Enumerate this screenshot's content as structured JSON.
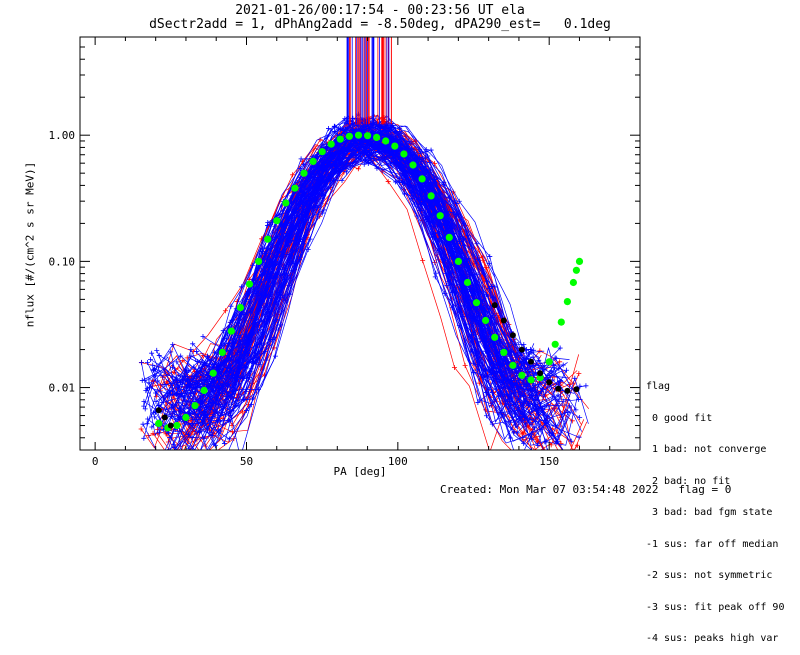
{
  "title_line1": "2021-01-26/00:17:54 - 00:23:56 UT ela",
  "title_line2": "dSectr2add = 1, dPhAng2add = -8.50deg, dPA290_est=   0.1deg",
  "footer": {
    "created": "Created: Mon Mar 07 03:54:48 2022",
    "flag": "flag = 0"
  },
  "legend": {
    "title": "flag",
    "items": [
      " 0 good fit",
      " 1 bad: not converge",
      " 2 bad: no fit",
      " 3 bad: bad fgm state",
      "-1 sus: far off median",
      "-2 sus: not symmetric",
      "-3 sus: fit peak off 90",
      "-4 sus: peaks high var"
    ]
  },
  "colors": {
    "red": "#ff0000",
    "blue": "#0000ff",
    "green": "#00ff00",
    "black": "#000000"
  },
  "chart_data": {
    "type": "line",
    "xlabel": "PA [deg]",
    "ylabel": "nflux [#/(cm^2 s sr MeV)]",
    "xlim": [
      -5,
      180
    ],
    "ylim": [
      0.0032,
      6.0
    ],
    "yscale": "log",
    "x_ticks": [
      0,
      50,
      100,
      150
    ],
    "x_tick_labels": [
      "0",
      "50",
      "100",
      "150"
    ],
    "y_ticks": [
      0.01,
      0.1,
      1.0
    ],
    "y_tick_labels": [
      "0.01",
      "0.10",
      "1.00"
    ],
    "series": [
      {
        "color": "green",
        "style": "markers",
        "x": [
          21,
          24,
          27,
          30,
          33,
          36,
          39,
          42,
          45,
          48,
          51,
          54,
          57,
          60,
          63,
          66,
          69,
          72,
          75,
          78,
          81,
          84,
          87,
          90,
          93,
          96,
          99,
          102,
          105,
          108,
          111,
          114,
          117,
          120,
          123,
          126,
          129,
          132,
          135,
          138,
          141,
          144,
          147,
          150,
          152,
          154,
          156,
          158,
          159,
          160
        ],
        "y": [
          0.0052,
          0.0048,
          0.005,
          0.0058,
          0.0072,
          0.0095,
          0.013,
          0.019,
          0.028,
          0.043,
          0.066,
          0.1,
          0.15,
          0.21,
          0.29,
          0.38,
          0.5,
          0.62,
          0.74,
          0.85,
          0.93,
          0.98,
          1.0,
          0.99,
          0.96,
          0.9,
          0.82,
          0.71,
          0.58,
          0.45,
          0.33,
          0.23,
          0.155,
          0.1,
          0.068,
          0.047,
          0.034,
          0.025,
          0.019,
          0.015,
          0.0125,
          0.0115,
          0.012,
          0.016,
          0.022,
          0.033,
          0.048,
          0.068,
          0.085,
          0.1
        ]
      },
      {
        "color": "black",
        "style": "markers",
        "x": [
          21,
          23,
          25,
          132,
          135,
          138,
          141,
          144,
          147,
          150,
          153,
          156,
          159
        ],
        "y": [
          0.0066,
          0.0058,
          0.005,
          0.045,
          0.034,
          0.026,
          0.02,
          0.016,
          0.013,
          0.011,
          0.0098,
          0.0094,
          0.0097
        ]
      }
    ]
  }
}
